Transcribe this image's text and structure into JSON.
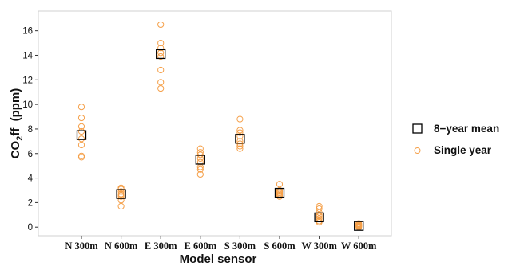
{
  "chart_data": {
    "type": "scatter",
    "title": "",
    "xlabel": "Model sensor",
    "ylabel": {
      "prefix": "CO",
      "subscript": "2",
      "suffix": "ff  (ppm)"
    },
    "ylim": [
      -0.7,
      17.6
    ],
    "yticks": [
      0,
      2,
      4,
      6,
      8,
      10,
      12,
      14,
      16
    ],
    "ytick_labels": [
      "0",
      "2",
      "4",
      "6",
      "8",
      "10",
      "12",
      "14",
      "16"
    ],
    "categories": [
      "N 300m",
      "N 600m",
      "E 300m",
      "E 600m",
      "S 300m",
      "S 600m",
      "W 300m",
      "W 600m"
    ],
    "grid": false,
    "legend_position": "right",
    "series": [
      {
        "name": "8−year mean",
        "marker": "open-square",
        "color": "#000000",
        "values": [
          7.5,
          2.7,
          14.1,
          5.5,
          7.2,
          2.8,
          0.8,
          0.1
        ]
      },
      {
        "name": "Single year",
        "marker": "open-circle",
        "color": "#F5A04A",
        "points": [
          [
            7.2,
            7.8,
            8.2,
            8.9,
            9.8,
            6.7,
            5.8,
            5.7
          ],
          [
            2.6,
            2.9,
            3.1,
            3.2,
            2.7,
            2.5,
            2.2,
            1.7
          ],
          [
            16.5,
            15.0,
            14.6,
            14.2,
            13.9,
            12.8,
            11.8,
            11.3
          ],
          [
            6.4,
            6.1,
            5.9,
            5.6,
            5.3,
            4.9,
            4.7,
            4.3
          ],
          [
            8.8,
            7.9,
            7.7,
            7.4,
            7.0,
            6.8,
            6.6,
            6.4
          ],
          [
            3.5,
            3.0,
            2.9,
            2.8,
            2.7,
            2.6,
            2.6,
            2.5
          ],
          [
            1.7,
            1.5,
            1.2,
            1.0,
            0.9,
            0.7,
            0.5,
            0.4
          ],
          [
            0.3,
            0.25,
            0.2,
            0.15,
            0.1,
            0.08,
            0.05,
            0.0
          ]
        ]
      }
    ]
  }
}
